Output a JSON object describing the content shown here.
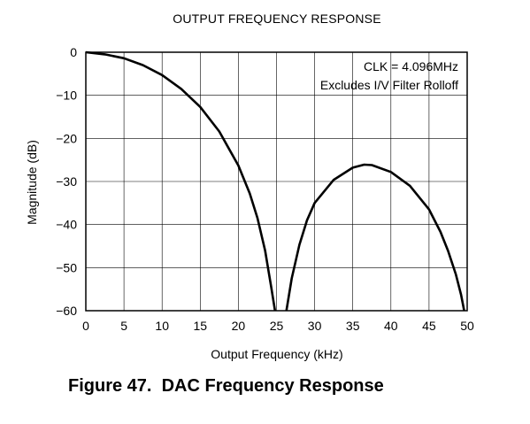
{
  "chart_data": {
    "type": "line",
    "title": "OUTPUT FREQUENCY RESPONSE",
    "xlabel": "Output Frequency (kHz)",
    "ylabel": "Magnitude (dB)",
    "xlim": [
      0,
      50
    ],
    "ylim": [
      -60,
      0
    ],
    "x_ticks": [
      0,
      5,
      10,
      15,
      20,
      25,
      30,
      35,
      40,
      45,
      50
    ],
    "y_ticks": [
      0,
      -10,
      -20,
      -30,
      -40,
      -50,
      -60
    ],
    "x_tick_labels": [
      "0",
      "5",
      "10",
      "15",
      "20",
      "25",
      "30",
      "35",
      "40",
      "45",
      "50"
    ],
    "y_tick_labels": [
      "0",
      "−10",
      "−20",
      "−30",
      "−40",
      "−50",
      "−60"
    ],
    "grid": true,
    "annotations": [
      "CLK = 4.096MHz",
      "Excludes I/V Filter Rolloff"
    ],
    "series": [
      {
        "x": [
          0,
          2.5,
          5,
          7.5,
          10,
          12.5,
          15,
          17.5,
          20,
          21.5,
          22.5,
          23.5,
          24.3,
          24.8,
          26.3,
          27,
          28,
          29,
          30,
          32.5,
          35,
          36.5,
          37.5,
          40,
          42.5,
          45,
          46.5,
          47.5,
          48.5,
          49.2,
          49.6
        ],
        "y": [
          0,
          -0.5,
          -1.4,
          -3.0,
          -5.3,
          -8.5,
          -12.7,
          -18.4,
          -26.3,
          -32.8,
          -38.5,
          -46.0,
          -54.5,
          -60,
          -60,
          -52.5,
          -44.7,
          -39.0,
          -35.0,
          -29.6,
          -26.8,
          -26.1,
          -26.2,
          -27.8,
          -31.0,
          -36.5,
          -41.7,
          -46.1,
          -51.5,
          -56.3,
          -60
        ],
        "color": "#000000"
      }
    ]
  },
  "caption": {
    "text": "Figure 47.  DAC Frequency Response"
  }
}
